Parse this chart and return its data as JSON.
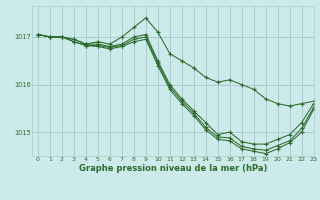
{
  "title": "Graphe pression niveau de la mer (hPa)",
  "bg_color": "#cceaea",
  "grid_color": "#aacccc",
  "line_color": "#2d6b2d",
  "ylim": [
    1014.5,
    1017.65
  ],
  "xlim": [
    -0.5,
    23
  ],
  "yticks": [
    1015,
    1016,
    1017
  ],
  "xticks": [
    0,
    1,
    2,
    3,
    4,
    5,
    6,
    7,
    8,
    9,
    10,
    11,
    12,
    13,
    14,
    15,
    16,
    17,
    18,
    19,
    20,
    21,
    22,
    23
  ],
  "series": [
    [
      1017.05,
      1017.0,
      1017.0,
      1016.95,
      1016.85,
      1016.9,
      1016.85,
      1017.0,
      1017.2,
      1017.4,
      1017.1,
      1016.65,
      1016.5,
      1016.35,
      1016.15,
      1016.05,
      1016.1,
      1016.0,
      1015.9,
      1015.7,
      1015.6,
      1015.55,
      1015.6,
      1015.65
    ],
    [
      1017.05,
      1017.0,
      1017.0,
      1016.95,
      1016.85,
      1016.85,
      1016.8,
      1016.85,
      1017.0,
      1017.05,
      1016.5,
      1016.0,
      1015.7,
      1015.45,
      1015.2,
      1014.95,
      1015.0,
      1014.8,
      1014.75,
      1014.75,
      1014.85,
      1014.95,
      1015.2,
      1015.6
    ],
    [
      1017.05,
      1017.0,
      1017.0,
      1016.9,
      1016.82,
      1016.82,
      1016.78,
      1016.82,
      1016.95,
      1017.0,
      1016.45,
      1015.95,
      1015.65,
      1015.4,
      1015.1,
      1014.9,
      1014.88,
      1014.7,
      1014.65,
      1014.62,
      1014.72,
      1014.82,
      1015.08,
      1015.52
    ],
    [
      1017.05,
      1017.0,
      1017.0,
      1016.9,
      1016.82,
      1016.8,
      1016.75,
      1016.8,
      1016.9,
      1016.95,
      1016.4,
      1015.9,
      1015.6,
      1015.35,
      1015.05,
      1014.85,
      1014.82,
      1014.65,
      1014.6,
      1014.55,
      1014.65,
      1014.78,
      1015.0,
      1015.48
    ]
  ]
}
